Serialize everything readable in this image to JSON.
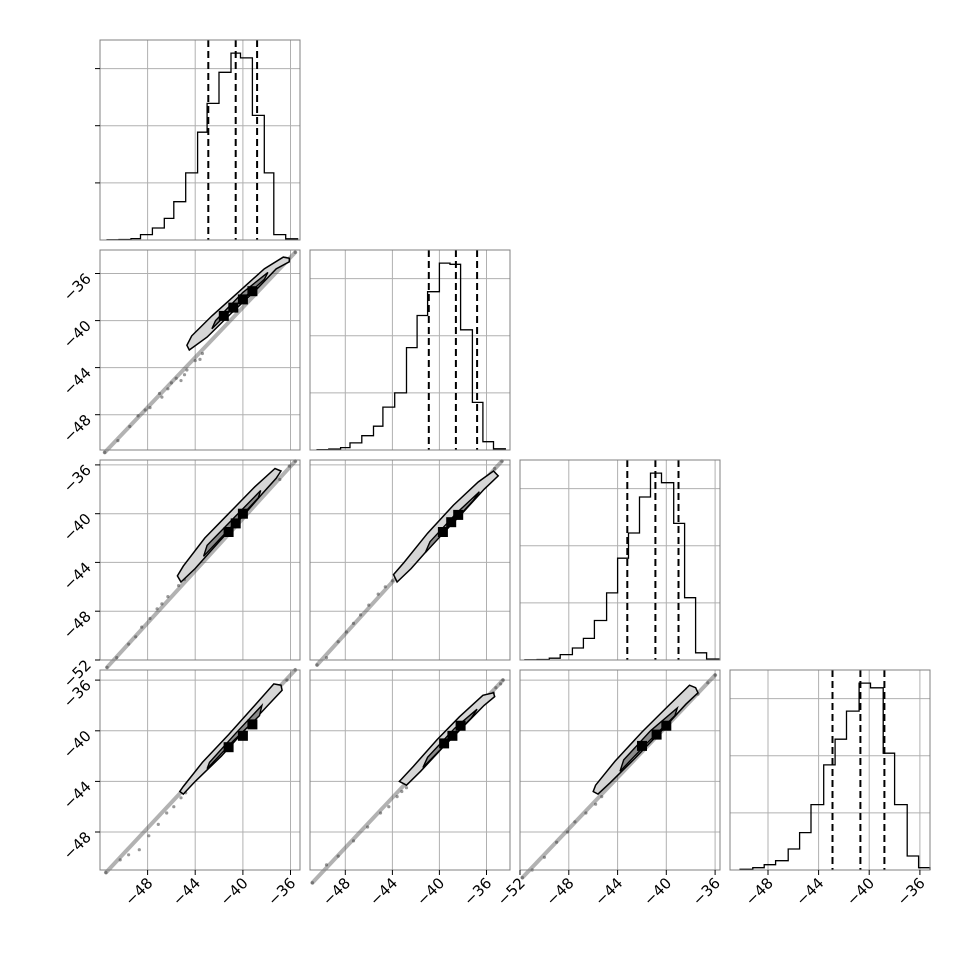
{
  "figure": {
    "background": "#ffffff"
  },
  "chart_data": {
    "type": "corner",
    "grid": true,
    "colors": {
      "line": "#000000",
      "grid": "#b0b0b0",
      "frame": "#808080",
      "dashes": "#000000"
    },
    "params": [
      {
        "range": [
          -52.0,
          -35.2
        ],
        "quantiles": [
          -42.9,
          -40.6,
          -38.8
        ]
      },
      {
        "range": [
          -51.0,
          -34.0
        ],
        "quantiles": [
          -40.9,
          -38.6,
          -36.8
        ]
      },
      {
        "range": [
          -52.0,
          -35.6
        ],
        "quantiles": [
          -43.2,
          -40.9,
          -39.0
        ]
      },
      {
        "range": [
          -51.0,
          -35.2
        ],
        "quantiles": [
          -42.9,
          -40.7,
          -38.8
        ]
      }
    ],
    "tick_values": [
      -52,
      -48,
      -44,
      -40,
      -36
    ],
    "x_tick_labels": [
      [
        "-48",
        "-44",
        "-40",
        "-36"
      ],
      [
        "-48",
        "-44",
        "-40",
        "-36"
      ],
      [
        "-52",
        "-48",
        "-44",
        "-40",
        "-36"
      ],
      [
        "-48",
        "-44",
        "-40",
        "-36"
      ]
    ],
    "y_tick_labels": [
      null,
      [
        "-36",
        "-40",
        "-44",
        "-48"
      ],
      [
        "-36",
        "-40",
        "-44",
        "-48",
        "-52"
      ],
      [
        "-36",
        "-40",
        "-44",
        "-48"
      ]
    ],
    "histograms": [
      {
        "edges": [
          -51.4,
          -50.4,
          -49.4,
          -48.6,
          -47.6,
          -46.6,
          -45.8,
          -44.8,
          -43.8,
          -43.0,
          -42.0,
          -41.0,
          -40.2,
          -39.2,
          -38.2,
          -37.4,
          -36.4,
          -35.4
        ],
        "counts": [
          2,
          4,
          12,
          45,
          100,
          180,
          320,
          560,
          900,
          1140,
          1400,
          1560,
          1520,
          1040,
          560,
          45,
          10
        ]
      },
      {
        "edges": [
          -50.4,
          -49.4,
          -48.4,
          -47.6,
          -46.6,
          -45.6,
          -44.8,
          -43.8,
          -42.8,
          -41.9,
          -41.0,
          -40.0,
          -39.1,
          -38.2,
          -37.2,
          -36.3,
          -35.4,
          -34.4
        ],
        "counts": [
          3,
          8,
          20,
          60,
          120,
          200,
          360,
          480,
          860,
          1130,
          1330,
          1570,
          1560,
          1010,
          400,
          70,
          10
        ]
      },
      {
        "edges": [
          -51.6,
          -50.6,
          -49.6,
          -48.7,
          -47.7,
          -46.8,
          -45.9,
          -44.9,
          -44.0,
          -43.1,
          -42.2,
          -41.3,
          -40.4,
          -39.4,
          -38.5,
          -37.6,
          -36.7,
          -35.7
        ],
        "counts": [
          2,
          4,
          15,
          45,
          100,
          180,
          330,
          560,
          850,
          1060,
          1360,
          1560,
          1480,
          1140,
          520,
          60,
          8
        ]
      },
      {
        "edges": [
          -50.2,
          -49.2,
          -48.3,
          -47.4,
          -46.4,
          -45.5,
          -44.6,
          -43.6,
          -42.7,
          -41.8,
          -40.8,
          -39.9,
          -38.9,
          -38.0,
          -37.0,
          -36.1,
          -35.2
        ],
        "counts": [
          6,
          20,
          45,
          80,
          180,
          320,
          560,
          900,
          1120,
          1360,
          1600,
          1560,
          1000,
          560,
          120,
          20
        ]
      }
    ],
    "pairs": [
      {
        "row": 1,
        "col": 0,
        "points": [
          [
            -48.2,
            -47.6
          ],
          [
            -49.5,
            -49.0
          ],
          [
            -47.0,
            -46.2
          ],
          [
            -46.3,
            -45.8
          ],
          [
            -45.6,
            -44.9
          ],
          [
            -45.2,
            -45.1
          ],
          [
            -44.7,
            -44.2
          ],
          [
            -44.0,
            -43.4
          ],
          [
            -43.4,
            -42.8
          ],
          [
            -47.8,
            -47.4
          ],
          [
            -48.8,
            -48.1
          ],
          [
            -50.5,
            -50.2
          ],
          [
            -51.6,
            -51.2
          ],
          [
            -46.8,
            -46.5
          ],
          [
            -37.3,
            -35.3
          ],
          [
            -36.4,
            -34.7
          ],
          [
            -35.6,
            -34.2
          ],
          [
            -43.6,
            -43.3
          ],
          [
            -44.9,
            -44.6
          ],
          [
            -46.0,
            -45.3
          ]
        ],
        "dark": [
          [
            -40.8,
            -38.9
          ],
          [
            -40.0,
            -38.2
          ],
          [
            -39.2,
            -37.5
          ],
          [
            -41.6,
            -39.6
          ]
        ],
        "contour_outer": [
          [
            -44.5,
            -42.5
          ],
          [
            -43.0,
            -41.4
          ],
          [
            -41.0,
            -39.4
          ],
          [
            -39.0,
            -37.5
          ],
          [
            -37.2,
            -35.6
          ],
          [
            -36.1,
            -35.0
          ],
          [
            -36.1,
            -34.7
          ],
          [
            -36.6,
            -34.6
          ],
          [
            -38.2,
            -35.6
          ],
          [
            -40.4,
            -37.6
          ],
          [
            -42.6,
            -39.6
          ],
          [
            -44.3,
            -41.3
          ],
          [
            -44.7,
            -42.1
          ],
          [
            -44.5,
            -42.5
          ]
        ],
        "contour_inner": [
          [
            -42.6,
            -40.7
          ],
          [
            -40.5,
            -38.6
          ],
          [
            -38.2,
            -36.5
          ],
          [
            -37.9,
            -35.9
          ],
          [
            -40.0,
            -37.6
          ],
          [
            -42.3,
            -40.0
          ],
          [
            -42.6,
            -40.7
          ]
        ]
      },
      {
        "row": 2,
        "col": 0,
        "points": [
          [
            -48.5,
            -49.3
          ],
          [
            -49.6,
            -50.7
          ],
          [
            -47.2,
            -47.8
          ],
          [
            -46.3,
            -46.8
          ],
          [
            -45.4,
            -45.9
          ],
          [
            -50.6,
            -51.8
          ],
          [
            -51.4,
            -52.6
          ],
          [
            -47.8,
            -48.6
          ],
          [
            -46.8,
            -47.4
          ],
          [
            -44.9,
            -45.4
          ],
          [
            -36.9,
            -37.2
          ],
          [
            -36.1,
            -36.1
          ],
          [
            -35.6,
            -35.7
          ],
          [
            -49.0,
            -50.1
          ]
        ],
        "dark": [
          [
            -40.0,
            -40.0
          ],
          [
            -41.2,
            -41.5
          ],
          [
            -40.6,
            -40.8
          ]
        ],
        "contour_outer": [
          [
            -45.2,
            -45.6
          ],
          [
            -44.0,
            -44.5
          ],
          [
            -42.0,
            -42.3
          ],
          [
            -40.0,
            -40.2
          ],
          [
            -38.4,
            -38.4
          ],
          [
            -37.2,
            -37.1
          ],
          [
            -36.8,
            -36.5
          ],
          [
            -37.3,
            -36.3
          ],
          [
            -39.0,
            -37.8
          ],
          [
            -41.0,
            -39.8
          ],
          [
            -43.2,
            -42.0
          ],
          [
            -45.0,
            -44.3
          ],
          [
            -45.5,
            -45.1
          ],
          [
            -45.2,
            -45.6
          ]
        ],
        "contour_inner": [
          [
            -43.3,
            -43.5
          ],
          [
            -41.0,
            -41.1
          ],
          [
            -38.7,
            -38.7
          ],
          [
            -38.5,
            -38.1
          ],
          [
            -40.7,
            -40.3
          ],
          [
            -43.0,
            -42.6
          ],
          [
            -43.3,
            -43.5
          ]
        ]
      },
      {
        "row": 2,
        "col": 1,
        "points": [
          [
            -48.6,
            -50.5
          ],
          [
            -47.3,
            -49.0
          ],
          [
            -46.0,
            -47.5
          ],
          [
            -45.2,
            -46.6
          ],
          [
            -44.6,
            -46.0
          ],
          [
            -49.6,
            -51.8
          ],
          [
            -50.4,
            -52.4
          ],
          [
            -47.9,
            -49.7
          ],
          [
            -46.7,
            -48.3
          ],
          [
            -43.4,
            -44.8
          ],
          [
            -34.7,
            -35.7
          ],
          [
            -35.3,
            -36.3
          ],
          [
            -44.0,
            -45.5
          ]
        ],
        "dark": [
          [
            -38.4,
            -40.1
          ],
          [
            -39.0,
            -40.7
          ],
          [
            -39.7,
            -41.5
          ]
        ],
        "contour_outer": [
          [
            -43.6,
            -45.6
          ],
          [
            -42.4,
            -44.5
          ],
          [
            -40.3,
            -42.2
          ],
          [
            -38.1,
            -40.0
          ],
          [
            -36.2,
            -38.0
          ],
          [
            -35.0,
            -36.9
          ],
          [
            -35.4,
            -36.5
          ],
          [
            -36.7,
            -37.4
          ],
          [
            -38.8,
            -39.3
          ],
          [
            -41.0,
            -41.6
          ],
          [
            -43.0,
            -44.0
          ],
          [
            -43.9,
            -45.0
          ],
          [
            -43.6,
            -45.6
          ]
        ],
        "contour_inner": [
          [
            -41.2,
            -43.2
          ],
          [
            -39.0,
            -40.9
          ],
          [
            -37.1,
            -38.9
          ],
          [
            -36.6,
            -38.2
          ],
          [
            -38.6,
            -40.0
          ],
          [
            -40.8,
            -42.3
          ],
          [
            -41.2,
            -43.2
          ]
        ]
      },
      {
        "row": 3,
        "col": 0,
        "points": [
          [
            -48.7,
            -49.4
          ],
          [
            -47.9,
            -48.3
          ],
          [
            -47.1,
            -47.4
          ],
          [
            -46.4,
            -46.5
          ],
          [
            -45.8,
            -46.0
          ],
          [
            -45.2,
            -45.3
          ],
          [
            -49.6,
            -49.8
          ],
          [
            -50.3,
            -50.2
          ],
          [
            -51.5,
            -51.2
          ],
          [
            -37.2,
            -37.0
          ],
          [
            -36.3,
            -36.0
          ],
          [
            -35.6,
            -35.2
          ],
          [
            -44.8,
            -44.9
          ]
        ],
        "dark": [
          [
            -40.0,
            -40.4
          ],
          [
            -41.2,
            -41.3
          ],
          [
            -39.2,
            -39.5
          ]
        ],
        "contour_outer": [
          [
            -45.0,
            -45.0
          ],
          [
            -44.0,
            -44.0
          ],
          [
            -41.8,
            -42.0
          ],
          [
            -39.6,
            -39.7
          ],
          [
            -37.6,
            -37.7
          ],
          [
            -36.7,
            -36.8
          ],
          [
            -36.8,
            -36.4
          ],
          [
            -37.4,
            -36.3
          ],
          [
            -39.2,
            -38.2
          ],
          [
            -41.2,
            -40.3
          ],
          [
            -43.4,
            -42.5
          ],
          [
            -45.0,
            -44.4
          ],
          [
            -45.3,
            -44.8
          ],
          [
            -45.0,
            -45.0
          ]
        ],
        "contour_inner": [
          [
            -43.0,
            -43.0
          ],
          [
            -40.8,
            -40.8
          ],
          [
            -38.6,
            -38.8
          ],
          [
            -38.4,
            -38.0
          ],
          [
            -40.6,
            -40.2
          ],
          [
            -42.8,
            -42.5
          ],
          [
            -43.0,
            -43.0
          ]
        ]
      },
      {
        "row": 3,
        "col": 1,
        "points": [
          [
            -48.6,
            -49.9
          ],
          [
            -47.3,
            -48.7
          ],
          [
            -46.1,
            -47.6
          ],
          [
            -45.0,
            -46.5
          ],
          [
            -44.3,
            -46.0
          ],
          [
            -43.6,
            -45.2
          ],
          [
            -49.6,
            -50.6
          ],
          [
            -50.8,
            -52.0
          ],
          [
            -35.8,
            -37.2
          ],
          [
            -35.2,
            -36.6
          ],
          [
            -34.6,
            -36.0
          ],
          [
            -42.8,
            -44.5
          ],
          [
            -43.2,
            -44.8
          ],
          [
            -34.8,
            -36.3
          ],
          [
            -35.4,
            -37.0
          ]
        ],
        "dark": [
          [
            -38.9,
            -40.4
          ],
          [
            -39.6,
            -41.0
          ],
          [
            -38.2,
            -39.6
          ]
        ],
        "contour_outer": [
          [
            -42.8,
            -44.3
          ],
          [
            -41.6,
            -43.2
          ],
          [
            -39.8,
            -41.4
          ],
          [
            -37.9,
            -39.6
          ],
          [
            -36.2,
            -38.0
          ],
          [
            -35.3,
            -37.3
          ],
          [
            -35.4,
            -37.0
          ],
          [
            -36.3,
            -37.2
          ],
          [
            -38.3,
            -38.9
          ],
          [
            -40.2,
            -40.7
          ],
          [
            -42.2,
            -42.8
          ],
          [
            -43.4,
            -44.0
          ],
          [
            -42.8,
            -44.3
          ]
        ],
        "contour_inner": [
          [
            -41.4,
            -42.9
          ],
          [
            -39.4,
            -41.0
          ],
          [
            -37.3,
            -39.0
          ],
          [
            -36.8,
            -38.3
          ],
          [
            -38.7,
            -39.8
          ],
          [
            -41.0,
            -42.1
          ],
          [
            -41.4,
            -42.9
          ]
        ]
      },
      {
        "row": 3,
        "col": 2,
        "points": [
          [
            -50.0,
            -50.0
          ],
          [
            -49.0,
            -48.8
          ],
          [
            -48.1,
            -48.0
          ],
          [
            -47.5,
            -47.2
          ],
          [
            -46.6,
            -46.5
          ],
          [
            -45.8,
            -45.8
          ],
          [
            -51.0,
            -51.0
          ],
          [
            -51.8,
            -51.6
          ],
          [
            -37.4,
            -37.1
          ],
          [
            -36.6,
            -36.2
          ],
          [
            -36.0,
            -35.6
          ],
          [
            -45.3,
            -45.2
          ]
        ],
        "dark": [
          [
            -40.8,
            -40.3
          ],
          [
            -42.0,
            -41.2
          ],
          [
            -40.0,
            -39.6
          ]
        ],
        "contour_outer": [
          [
            -45.6,
            -45.0
          ],
          [
            -44.6,
            -44.1
          ],
          [
            -42.6,
            -42.2
          ],
          [
            -40.4,
            -40.0
          ],
          [
            -38.4,
            -37.9
          ],
          [
            -37.4,
            -37.0
          ],
          [
            -37.6,
            -36.6
          ],
          [
            -38.1,
            -36.4
          ],
          [
            -39.8,
            -38.0
          ],
          [
            -42.0,
            -40.1
          ],
          [
            -44.2,
            -42.4
          ],
          [
            -45.8,
            -44.3
          ],
          [
            -46.0,
            -44.8
          ],
          [
            -45.6,
            -45.0
          ]
        ],
        "contour_inner": [
          [
            -43.8,
            -43.2
          ],
          [
            -41.6,
            -41.0
          ],
          [
            -39.3,
            -38.8
          ],
          [
            -39.1,
            -38.2
          ],
          [
            -41.3,
            -40.0
          ],
          [
            -43.5,
            -42.3
          ],
          [
            -43.8,
            -43.2
          ]
        ]
      }
    ]
  }
}
